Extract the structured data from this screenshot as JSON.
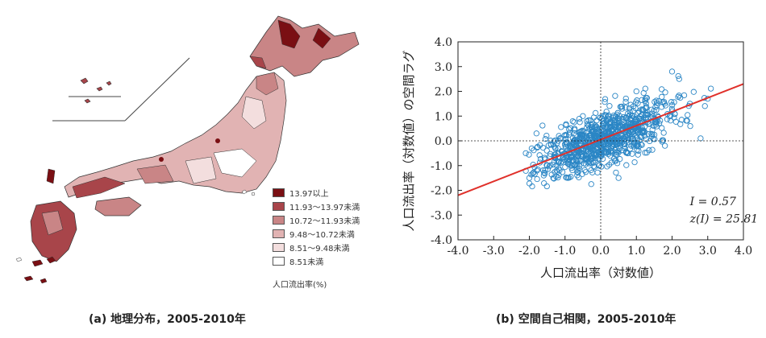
{
  "figure_a": {
    "caption": "(a) 地理分布，2005-2010年",
    "legend": {
      "items": [
        {
          "label": "13.97以上",
          "color": "#7a0f13"
        },
        {
          "label": "11.93～13.97未満",
          "color": "#a8454a"
        },
        {
          "label": "10.72～11.93未満",
          "color": "#c98586"
        },
        {
          "label": "9.48～10.72未満",
          "color": "#e1b3b3"
        },
        {
          "label": "8.51～9.48未満",
          "color": "#f3dede"
        },
        {
          "label": "8.51未満",
          "color": "#ffffff"
        }
      ],
      "title": "人口流出率(%)"
    }
  },
  "figure_b": {
    "caption": "(b) 空間自己相関，2005-2010年"
  },
  "chart_data": {
    "type": "scatter",
    "xlabel": "人口流出率（対数値）",
    "ylabel": "人口流出率（対数値）の空間ラグ",
    "xlim": [
      -4.0,
      4.0
    ],
    "ylim": [
      -4.0,
      4.0
    ],
    "xticks": [
      "-4.0",
      "-3.0",
      "-2.0",
      "-1.0",
      "0.0",
      "1.0",
      "2.0",
      "3.0",
      "4.0"
    ],
    "yticks": [
      "-4.0",
      "-3.0",
      "-2.0",
      "-1.0",
      "0.0",
      "1.0",
      "2.0",
      "3.0",
      "4.0"
    ],
    "marker_color": "#2b86c5",
    "fit_line": {
      "color": "#e0302a",
      "x": [
        -4.0,
        4.0
      ],
      "y": [
        -2.2,
        2.3
      ]
    },
    "annotations": [
      "I = 0.57",
      "z(I) = 25.81"
    ],
    "point_count": 900,
    "points_sample": [
      [
        -1.5,
        -1.0
      ],
      [
        -1.0,
        -0.5
      ],
      [
        -0.5,
        -0.3
      ],
      [
        0.0,
        0.0
      ],
      [
        0.5,
        0.3
      ],
      [
        1.0,
        0.6
      ],
      [
        1.5,
        0.9
      ],
      [
        2.0,
        1.2
      ],
      [
        2.5,
        1.5
      ],
      [
        3.0,
        1.7
      ],
      [
        -2.0,
        -1.5
      ],
      [
        -1.8,
        0.3
      ],
      [
        2.2,
        2.5
      ],
      [
        2.0,
        2.8
      ],
      [
        -2.1,
        -0.5
      ],
      [
        1.0,
        2.0
      ],
      [
        0.5,
        -1.5
      ],
      [
        -0.5,
        1.0
      ],
      [
        1.8,
        -0.2
      ],
      [
        2.8,
        0.1
      ]
    ]
  }
}
